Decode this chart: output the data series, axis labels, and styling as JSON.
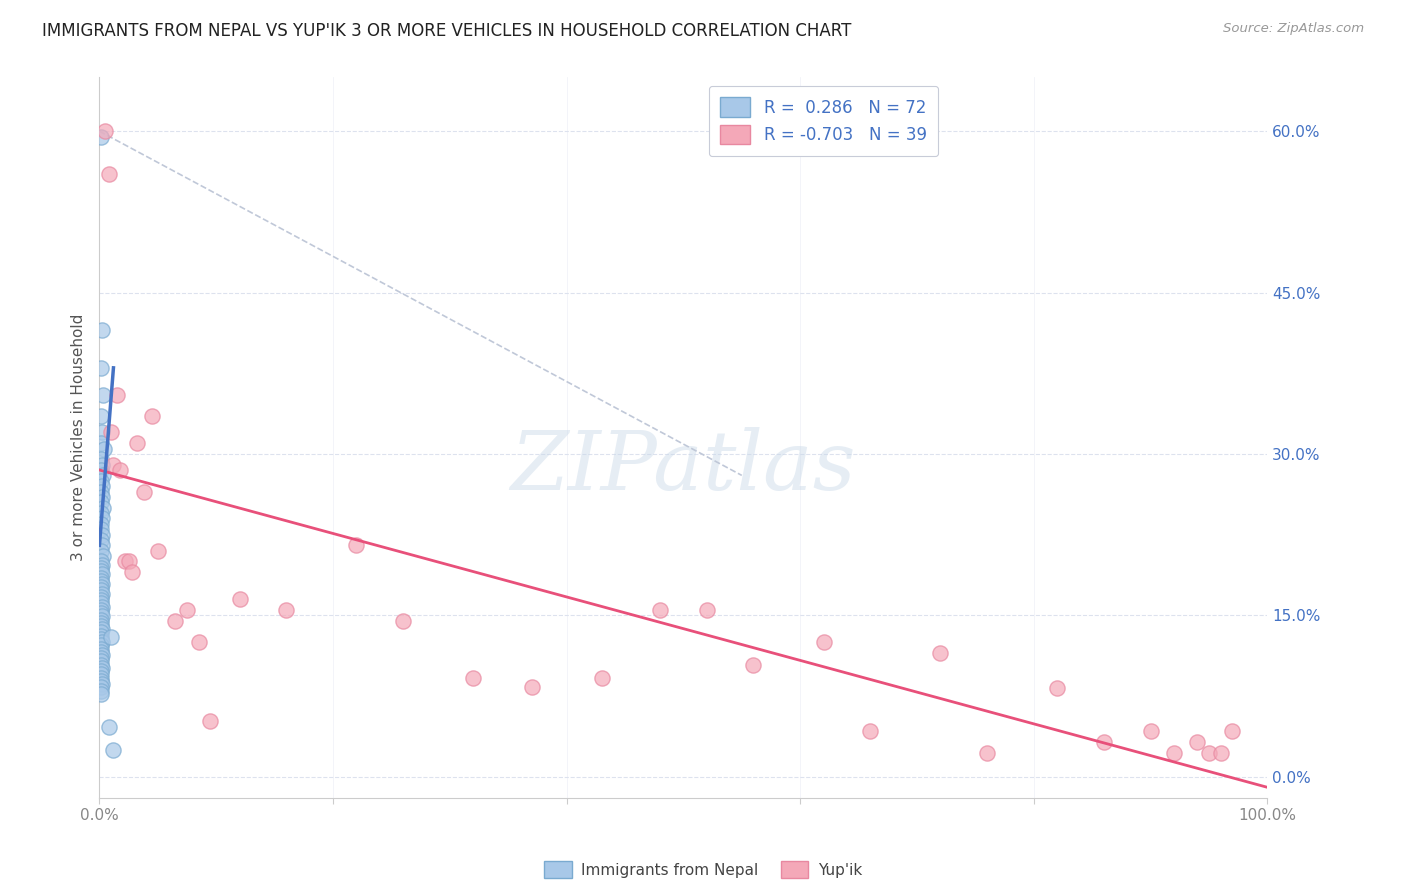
{
  "title": "IMMIGRANTS FROM NEPAL VS YUP'IK 3 OR MORE VEHICLES IN HOUSEHOLD CORRELATION CHART",
  "source": "Source: ZipAtlas.com",
  "ylabel": "3 or more Vehicles in Household",
  "xlim": [
    0,
    1.0
  ],
  "ylim": [
    -0.02,
    0.65
  ],
  "y_ticks": [
    0.0,
    0.15,
    0.3,
    0.45,
    0.6
  ],
  "y_tick_labels": [
    "0.0%",
    "15.0%",
    "30.0%",
    "45.0%",
    "60.0%"
  ],
  "nepal_R": 0.286,
  "nepal_N": 72,
  "yupik_R": -0.703,
  "yupik_N": 39,
  "nepal_color": "#a8c8e8",
  "yupik_color": "#f4a8b8",
  "nepal_edge_color": "#7aaad0",
  "yupik_edge_color": "#e888a0",
  "nepal_line_color": "#4472c4",
  "yupik_line_color": "#e8507a",
  "dashed_line_color": "#c0c8d8",
  "background_color": "#ffffff",
  "grid_color": "#dde2ee",
  "legend_box_color": "#f0f2f8",
  "legend_border_color": "#c8ccd8",
  "watermark_color": "#c8d8e8",
  "nepal_scatter_x": [
    0.001,
    0.002,
    0.001,
    0.003,
    0.001,
    0.002,
    0.001,
    0.004,
    0.001,
    0.002,
    0.001,
    0.003,
    0.001,
    0.002,
    0.001,
    0.002,
    0.001,
    0.003,
    0.001,
    0.002,
    0.001,
    0.001,
    0.002,
    0.001,
    0.002,
    0.001,
    0.003,
    0.001,
    0.002,
    0.001,
    0.001,
    0.002,
    0.001,
    0.001,
    0.002,
    0.001,
    0.001,
    0.002,
    0.001,
    0.001,
    0.001,
    0.002,
    0.001,
    0.001,
    0.002,
    0.001,
    0.001,
    0.001,
    0.002,
    0.001,
    0.001,
    0.001,
    0.002,
    0.001,
    0.001,
    0.001,
    0.002,
    0.001,
    0.001,
    0.001,
    0.002,
    0.001,
    0.001,
    0.001,
    0.001,
    0.002,
    0.001,
    0.001,
    0.001,
    0.01,
    0.008,
    0.012
  ],
  "nepal_scatter_y": [
    0.595,
    0.415,
    0.38,
    0.355,
    0.335,
    0.32,
    0.31,
    0.305,
    0.295,
    0.29,
    0.285,
    0.28,
    0.275,
    0.27,
    0.265,
    0.26,
    0.255,
    0.25,
    0.245,
    0.24,
    0.235,
    0.23,
    0.225,
    0.22,
    0.215,
    0.21,
    0.205,
    0.2,
    0.197,
    0.194,
    0.191,
    0.188,
    0.185,
    0.182,
    0.179,
    0.176,
    0.173,
    0.17,
    0.167,
    0.164,
    0.161,
    0.158,
    0.155,
    0.152,
    0.149,
    0.146,
    0.143,
    0.14,
    0.137,
    0.134,
    0.131,
    0.128,
    0.125,
    0.122,
    0.119,
    0.116,
    0.113,
    0.11,
    0.107,
    0.104,
    0.101,
    0.098,
    0.095,
    0.092,
    0.089,
    0.086,
    0.083,
    0.08,
    0.077,
    0.13,
    0.046,
    0.025
  ],
  "yupik_scatter_x": [
    0.005,
    0.008,
    0.01,
    0.012,
    0.015,
    0.018,
    0.022,
    0.025,
    0.028,
    0.032,
    0.038,
    0.045,
    0.05,
    0.065,
    0.075,
    0.085,
    0.095,
    0.12,
    0.16,
    0.22,
    0.26,
    0.32,
    0.37,
    0.43,
    0.48,
    0.52,
    0.56,
    0.62,
    0.66,
    0.72,
    0.76,
    0.82,
    0.86,
    0.9,
    0.92,
    0.94,
    0.95,
    0.96,
    0.97
  ],
  "yupik_scatter_y": [
    0.6,
    0.56,
    0.32,
    0.29,
    0.355,
    0.285,
    0.2,
    0.2,
    0.19,
    0.31,
    0.265,
    0.335,
    0.21,
    0.145,
    0.155,
    0.125,
    0.052,
    0.165,
    0.155,
    0.215,
    0.145,
    0.092,
    0.083,
    0.092,
    0.155,
    0.155,
    0.104,
    0.125,
    0.042,
    0.115,
    0.022,
    0.082,
    0.032,
    0.042,
    0.022,
    0.032,
    0.022,
    0.022,
    0.042
  ],
  "nepal_line_x": [
    0.0,
    0.012
  ],
  "nepal_line_y": [
    0.215,
    0.38
  ],
  "yupik_line_x": [
    0.0,
    1.0
  ],
  "yupik_line_y": [
    0.285,
    -0.01
  ],
  "dashed_line_x": [
    0.0,
    0.55
  ],
  "dashed_line_y": [
    0.6,
    0.28
  ],
  "legend_labels": [
    "Immigrants from Nepal",
    "Yup'ik"
  ],
  "watermark": "ZIPatlas"
}
